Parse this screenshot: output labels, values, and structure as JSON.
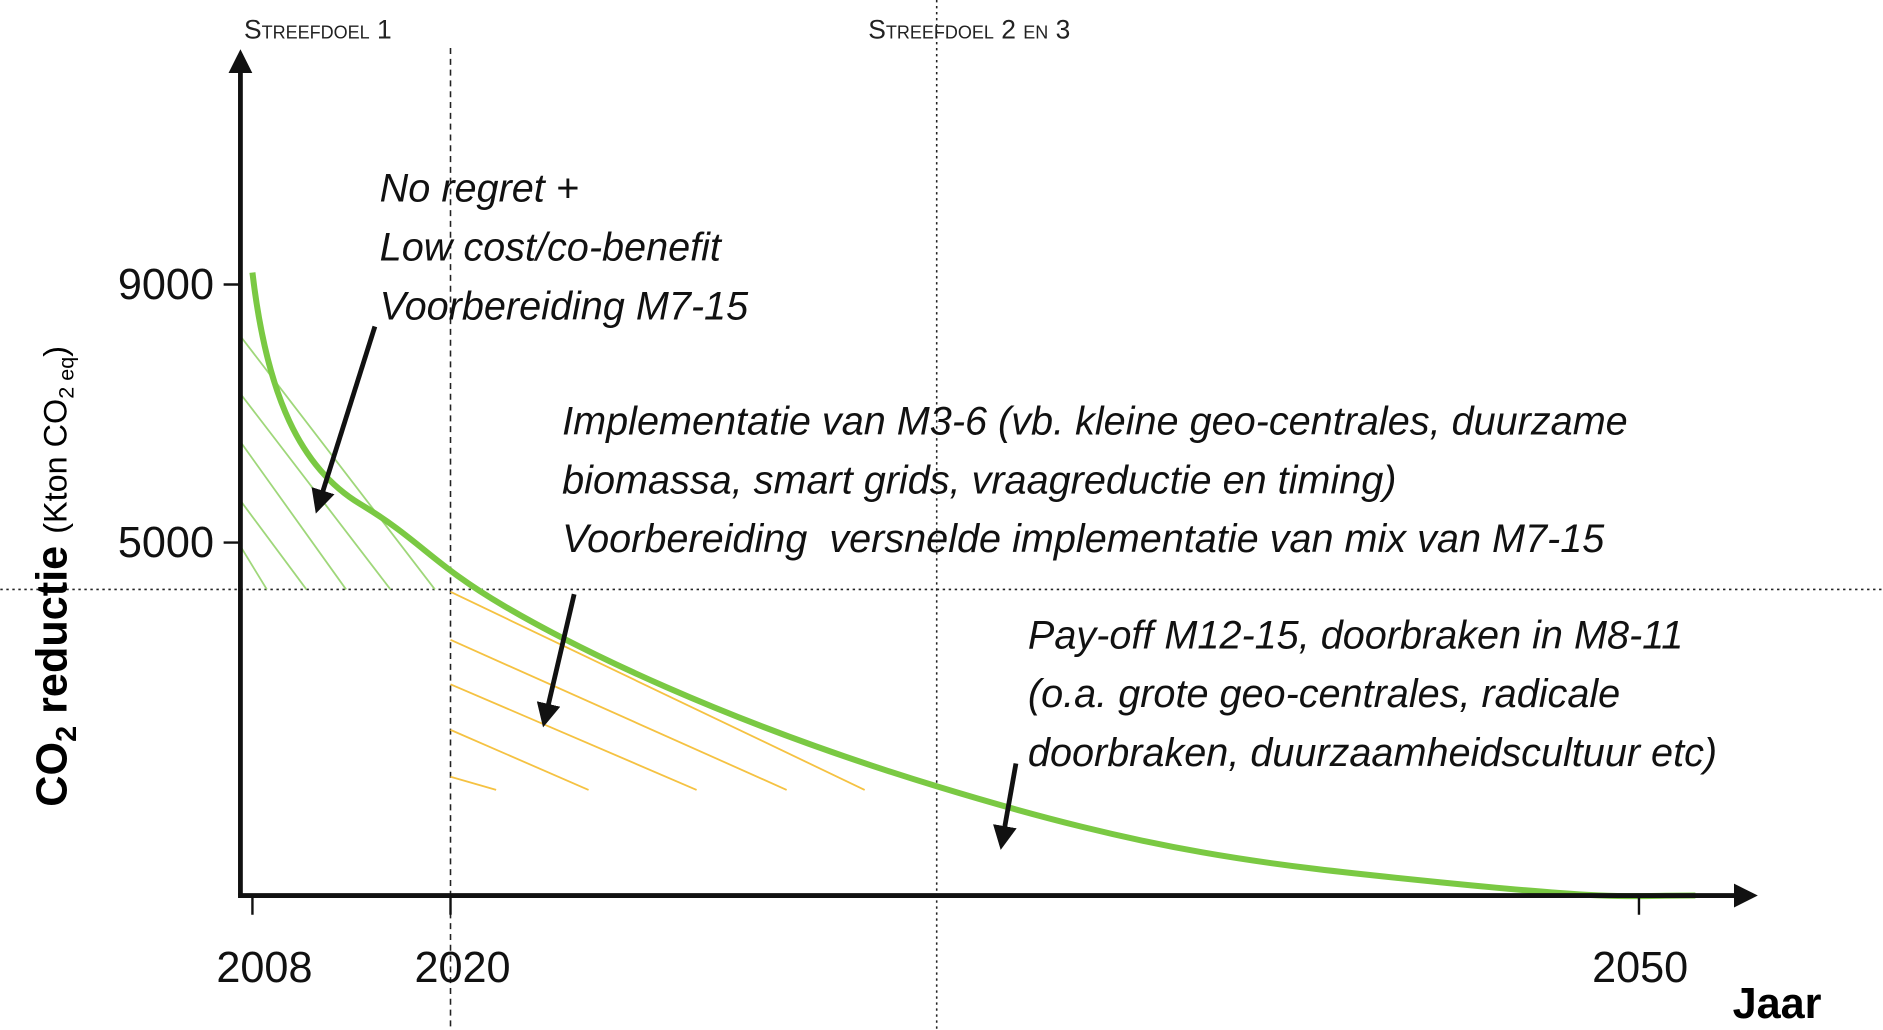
{
  "targets": [
    "Streefdoel 1",
    "Streefdoel 2 en 3"
  ],
  "y_axis": {
    "label": [
      "CO",
      "2",
      " reductie "
    ],
    "unit": [
      "(Kton CO",
      "2 eq",
      ")"
    ],
    "ticks": [
      "9000",
      "5000"
    ]
  },
  "x_axis": {
    "label": "Jaar",
    "ticks": [
      "2008",
      "2020",
      "2050"
    ]
  },
  "annotations": [
    {
      "lines": [
        "No regret +",
        "Low cost/co-benefit",
        "Voorbereiding M7-15"
      ]
    },
    {
      "lines": [
        "Implementatie van M3-6 (vb. kleine geo-centrales, duurzame",
        "biomassa, smart grids, vraagreductie en timing)",
        "Voorbereiding  versnelde implementatie van mix van M7-15"
      ]
    },
    {
      "lines": [
        "Pay-off M12-15, doorbraken in M8-11",
        "(o.a. grote geo-centrales, radicale",
        "doorbraken, duurzaamheidscultuur etc)"
      ]
    }
  ]
}
